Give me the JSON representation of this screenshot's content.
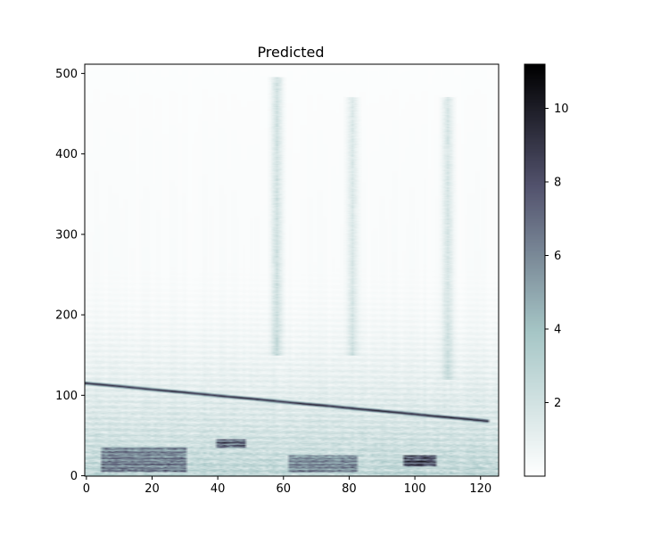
{
  "chart_data": {
    "type": "heatmap",
    "title": "Predicted",
    "xlabel": "",
    "ylabel": "",
    "xlim": [
      -0.5,
      125.5
    ],
    "ylim": [
      -0.5,
      511.5
    ],
    "x_ticks": [
      0,
      20,
      40,
      60,
      80,
      100,
      120
    ],
    "y_ticks": [
      0,
      100,
      200,
      300,
      400,
      500
    ],
    "grid": false,
    "colormap": "bone_r",
    "colormap_stops": [
      "#ffffff",
      "#a6c6c6",
      "#54546f",
      "#000000"
    ],
    "colorbar": {
      "range": [
        0,
        11.2
      ],
      "ticks": [
        2,
        4,
        6,
        8,
        10
      ]
    },
    "features": {
      "diagonal_event": {
        "x": [
          0,
          122
        ],
        "y": [
          115,
          68
        ],
        "peak_value": 8.5
      },
      "vertical_streaks": [
        {
          "x": 58,
          "y_range": [
            150,
            495
          ],
          "value": 2.2
        },
        {
          "x": 81,
          "y_range": [
            150,
            470
          ],
          "value": 1.6
        },
        {
          "x": 110,
          "y_range": [
            120,
            470
          ],
          "value": 1.8
        }
      ],
      "low_rows_bands": [
        {
          "x_range": [
            5,
            30
          ],
          "y_range": [
            5,
            35
          ],
          "value": 5.5
        },
        {
          "x_range": [
            40,
            48
          ],
          "y_range": [
            35,
            45
          ],
          "value": 7.5
        },
        {
          "x_range": [
            62,
            82
          ],
          "y_range": [
            5,
            25
          ],
          "value": 5
        },
        {
          "x_range": [
            97,
            106
          ],
          "y_range": [
            12,
            25
          ],
          "value": 8
        }
      ]
    }
  }
}
